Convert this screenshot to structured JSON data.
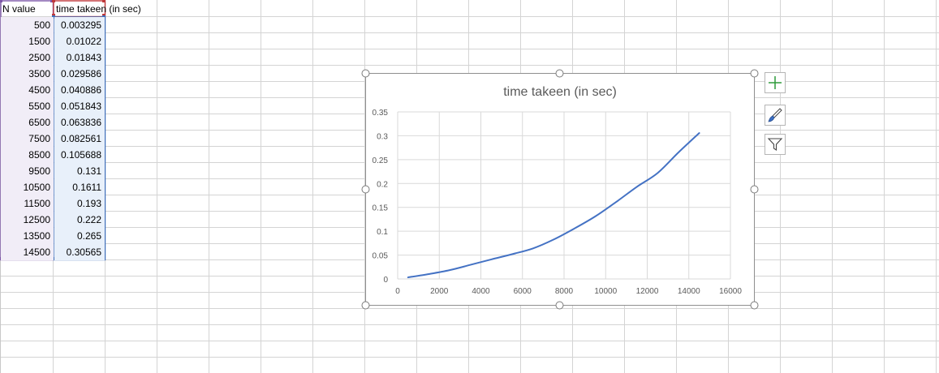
{
  "sheet": {
    "headers": {
      "a": "N value",
      "b": "time takeen (in sec)"
    },
    "rows": [
      {
        "n": "500",
        "t": "0.003295"
      },
      {
        "n": "1500",
        "t": "0.01022"
      },
      {
        "n": "2500",
        "t": "0.01843"
      },
      {
        "n": "3500",
        "t": "0.029586"
      },
      {
        "n": "4500",
        "t": "0.040886"
      },
      {
        "n": "5500",
        "t": "0.051843"
      },
      {
        "n": "6500",
        "t": "0.063836"
      },
      {
        "n": "7500",
        "t": "0.082561"
      },
      {
        "n": "8500",
        "t": "0.105688"
      },
      {
        "n": "9500",
        "t": "0.131"
      },
      {
        "n": "10500",
        "t": "0.1611"
      },
      {
        "n": "11500",
        "t": "0.193"
      },
      {
        "n": "12500",
        "t": "0.222"
      },
      {
        "n": "13500",
        "t": "0.265"
      },
      {
        "n": "14500",
        "t": "0.30565"
      }
    ]
  },
  "chart_tools": {
    "icons": [
      "plus-icon",
      "paintbrush-icon",
      "filter-icon"
    ]
  },
  "chart_data": {
    "type": "line",
    "title": "time takeen (in sec)",
    "xlabel": "",
    "ylabel": "",
    "xlim": [
      0,
      16000
    ],
    "ylim": [
      0,
      0.35
    ],
    "xticks": [
      "0",
      "2000",
      "4000",
      "6000",
      "8000",
      "10000",
      "12000",
      "14000",
      "16000"
    ],
    "yticks": [
      "0",
      "0.05",
      "0.1",
      "0.15",
      "0.2",
      "0.25",
      "0.3",
      "0.35"
    ],
    "grid": true,
    "legend": "none",
    "series": [
      {
        "color": "#4472c4",
        "x": [
          500,
          1500,
          2500,
          3500,
          4500,
          5500,
          6500,
          7500,
          8500,
          9500,
          10500,
          11500,
          12500,
          13500,
          14500
        ],
        "y": [
          0.003295,
          0.01022,
          0.01843,
          0.029586,
          0.040886,
          0.051843,
          0.063836,
          0.082561,
          0.105688,
          0.131,
          0.1611,
          0.193,
          0.222,
          0.265,
          0.30565
        ]
      }
    ]
  }
}
